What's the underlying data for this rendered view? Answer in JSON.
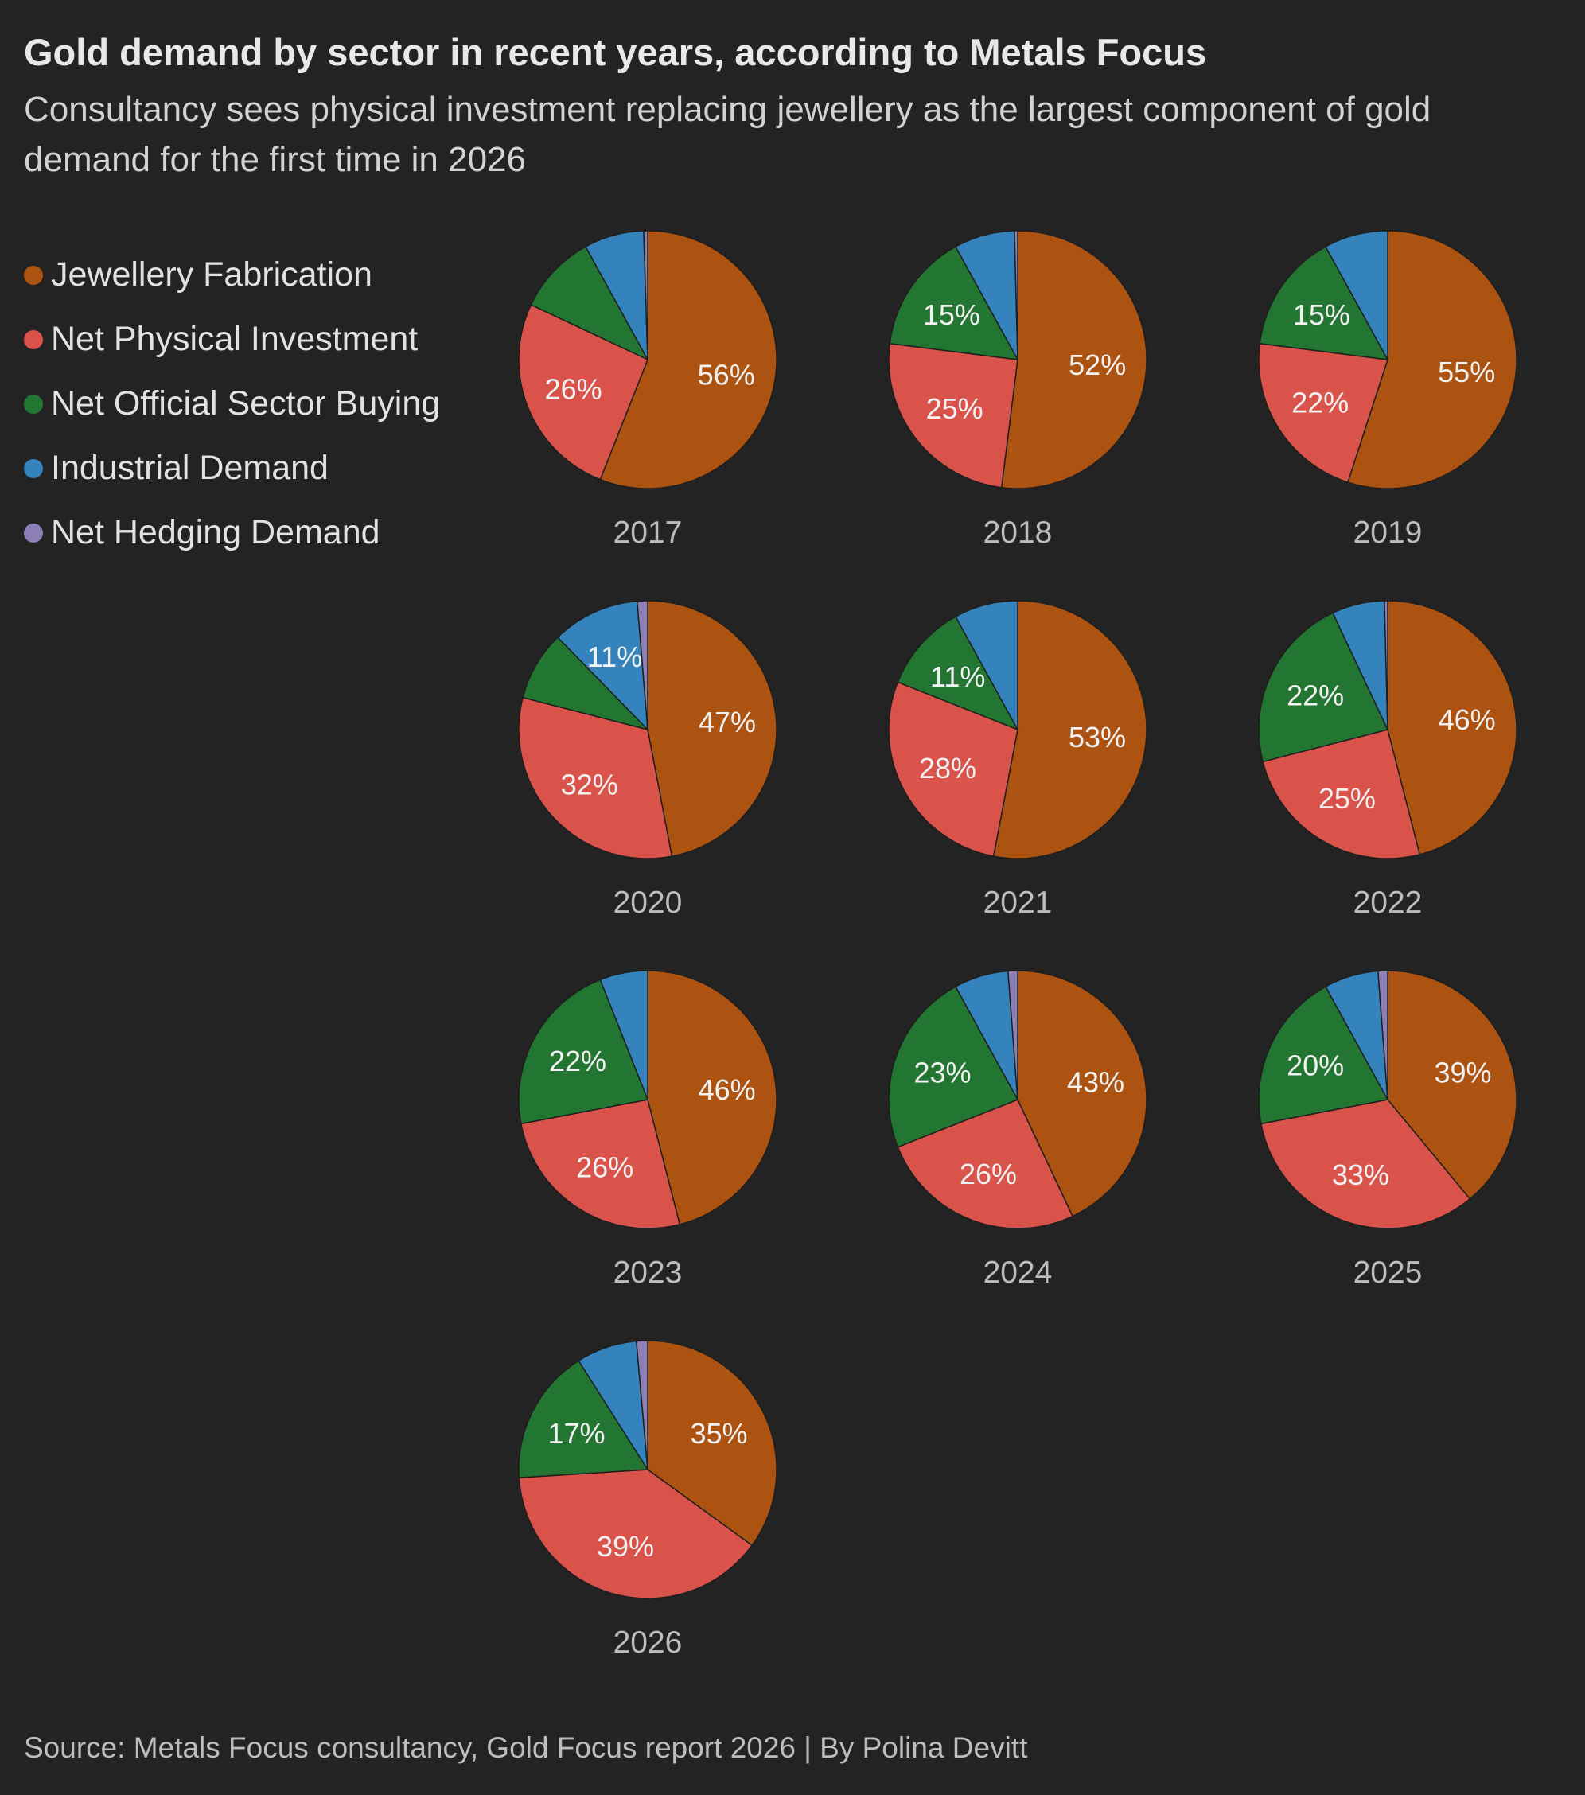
{
  "title": "Gold demand by sector in recent years, according to Metals Focus",
  "subtitle": "Consultancy sees physical investment replacing jewellery as the largest component of gold demand for the first time in 2026",
  "legend": [
    {
      "label": "Jewellery Fabrication",
      "color": "#ad5311"
    },
    {
      "label": "Net Physical Investment",
      "color": "#d9534b"
    },
    {
      "label": "Net Official Sector Buying",
      "color": "#237532"
    },
    {
      "label": "Industrial Demand",
      "color": "#3483bd"
    },
    {
      "label": "Net Hedging Demand",
      "color": "#8c7fb6"
    }
  ],
  "source": "Source: Metals Focus consultancy, Gold Focus report 2026 | By Polina Devitt",
  "chart_data": {
    "type": "pie",
    "categories": [
      "Jewellery Fabrication",
      "Net Physical Investment",
      "Net Official Sector Buying",
      "Industrial Demand",
      "Net Hedging Demand"
    ],
    "unit": "%",
    "pies": [
      {
        "year": "2017",
        "values": [
          56,
          26,
          10,
          7.5,
          0.5
        ],
        "labels": [
          "56%",
          "26%",
          "",
          "",
          ""
        ]
      },
      {
        "year": "2018",
        "values": [
          52,
          25,
          15,
          7.6,
          0.4
        ],
        "labels": [
          "52%",
          "25%",
          "15%",
          "",
          ""
        ]
      },
      {
        "year": "2019",
        "values": [
          55,
          22,
          15,
          8,
          0
        ],
        "labels": [
          "55%",
          "22%",
          "15%",
          "",
          ""
        ]
      },
      {
        "year": "2020",
        "values": [
          47,
          32,
          8.7,
          11,
          1.3
        ],
        "labels": [
          "47%",
          "32%",
          "",
          "11%",
          ""
        ]
      },
      {
        "year": "2021",
        "values": [
          53,
          28,
          11,
          8,
          0
        ],
        "labels": [
          "53%",
          "28%",
          "11%",
          "",
          ""
        ]
      },
      {
        "year": "2022",
        "values": [
          46,
          25,
          22,
          6.6,
          0.4
        ],
        "labels": [
          "46%",
          "25%",
          "22%",
          "",
          ""
        ]
      },
      {
        "year": "2023",
        "values": [
          46,
          26,
          22,
          6,
          0
        ],
        "labels": [
          "46%",
          "26%",
          "22%",
          "",
          ""
        ]
      },
      {
        "year": "2024",
        "values": [
          43,
          26,
          23,
          6.8,
          1.2
        ],
        "labels": [
          "43%",
          "26%",
          "23%",
          "",
          ""
        ]
      },
      {
        "year": "2025",
        "values": [
          39,
          33,
          20,
          6.8,
          1.2
        ],
        "labels": [
          "39%",
          "33%",
          "20%",
          "",
          ""
        ]
      },
      {
        "year": "2026",
        "values": [
          35,
          39,
          17,
          7.6,
          1.4
        ],
        "labels": [
          "35%",
          "39%",
          "17%",
          "",
          ""
        ]
      }
    ]
  }
}
